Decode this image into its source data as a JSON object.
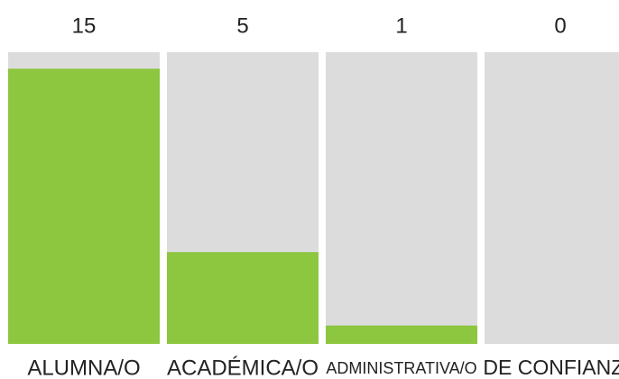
{
  "chart_data": {
    "type": "bar",
    "categories": [
      "ALUMNA/O",
      "ACADÉMICA/O",
      "ADMINISTRATIVA/O",
      "DE CONFIANZA"
    ],
    "values": [
      15,
      5,
      1,
      0
    ],
    "color": "#8dc63f",
    "ylim": [
      0,
      15.9
    ]
  }
}
